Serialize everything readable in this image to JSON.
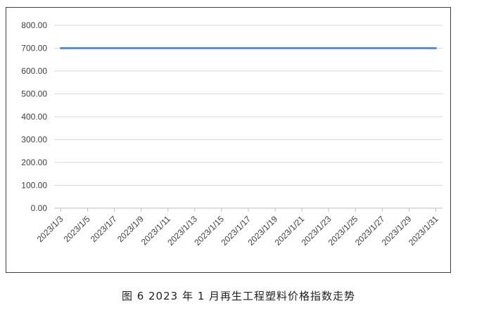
{
  "caption": "图 6  2023 年 1 月再生工程塑料价格指数走势",
  "chart_data": {
    "type": "line",
    "title": "",
    "xlabel": "",
    "ylabel": "",
    "ylim": [
      0,
      800
    ],
    "y_ticks": [
      "0.00",
      "100.00",
      "200.00",
      "300.00",
      "400.00",
      "500.00",
      "600.00",
      "700.00",
      "800.00"
    ],
    "x_tick_labels": [
      "2023/1/3",
      "2023/1/5",
      "2023/1/7",
      "2023/1/9",
      "2023/1/11",
      "2023/1/13",
      "2023/1/15",
      "2023/1/17",
      "2023/1/19",
      "2023/1/21",
      "2023/1/23",
      "2023/1/25",
      "2023/1/27",
      "2023/1/29",
      "2023/1/31"
    ],
    "x": [
      "2023/1/3",
      "2023/1/4",
      "2023/1/5",
      "2023/1/6",
      "2023/1/7",
      "2023/1/8",
      "2023/1/9",
      "2023/1/10",
      "2023/1/11",
      "2023/1/12",
      "2023/1/13",
      "2023/1/14",
      "2023/1/15",
      "2023/1/16",
      "2023/1/17",
      "2023/1/18",
      "2023/1/19",
      "2023/1/20",
      "2023/1/21",
      "2023/1/22",
      "2023/1/23",
      "2023/1/24",
      "2023/1/25",
      "2023/1/26",
      "2023/1/27",
      "2023/1/28",
      "2023/1/29",
      "2023/1/30",
      "2023/1/31"
    ],
    "series": [
      {
        "color": "#5b8fd4",
        "values": [
          700,
          700,
          700,
          700,
          700,
          700,
          700,
          700,
          700,
          700,
          700,
          700,
          700,
          700,
          700,
          700,
          700,
          700,
          700,
          700,
          700,
          700,
          700,
          700,
          700,
          700,
          700,
          700,
          700
        ]
      }
    ],
    "grid": true,
    "legend": "none"
  }
}
